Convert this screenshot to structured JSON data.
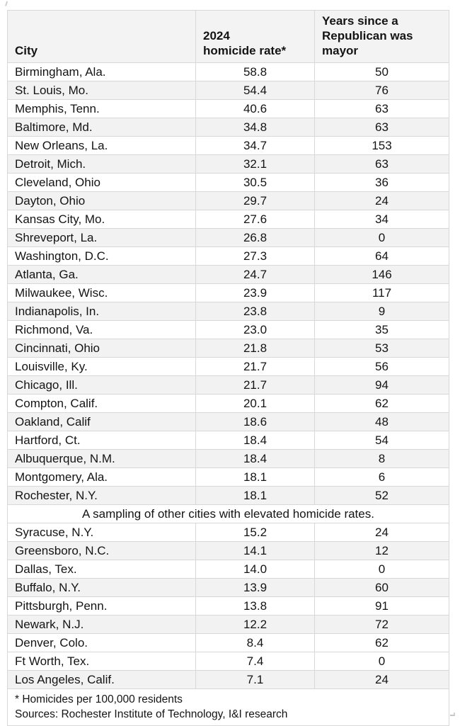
{
  "colors": {
    "row_shade": "#f2f2f2",
    "header_bg": "#f3f3f3",
    "border": "#d8d8d8",
    "text": "#141414"
  },
  "chart_data": {
    "type": "table",
    "columns": [
      "City",
      "2024\nhomicide rate*",
      "Years since a\nRepublican was\nmayor"
    ],
    "main_rows": [
      {
        "city": "Birmingham, Ala.",
        "rate": "58.8",
        "years": "50",
        "shaded": false
      },
      {
        "city": "St. Louis, Mo.",
        "rate": "54.4",
        "years": "76",
        "shaded": true
      },
      {
        "city": "Memphis, Tenn.",
        "rate": "40.6",
        "years": "63",
        "shaded": false
      },
      {
        "city": "Baltimore, Md.",
        "rate": "34.8",
        "years": "63",
        "shaded": true
      },
      {
        "city": "New Orleans, La.",
        "rate": "34.7",
        "years": "153",
        "shaded": false
      },
      {
        "city": "Detroit, Mich.",
        "rate": "32.1",
        "years": "63",
        "shaded": true
      },
      {
        "city": "Cleveland, Ohio",
        "rate": "30.5",
        "years": "36",
        "shaded": false
      },
      {
        "city": "Dayton, Ohio",
        "rate": "29.7",
        "years": "24",
        "shaded": true
      },
      {
        "city": "Kansas City, Mo.",
        "rate": "27.6",
        "years": "34",
        "shaded": false
      },
      {
        "city": "Shreveport, La.",
        "rate": "26.8",
        "years": "0",
        "shaded": true
      },
      {
        "city": "Washington, D.C.",
        "rate": "27.3",
        "years": "64",
        "shaded": false
      },
      {
        "city": "Atlanta, Ga.",
        "rate": "24.7",
        "years": "146",
        "shaded": true
      },
      {
        "city": "Milwaukee, Wisc.",
        "rate": "23.9",
        "years": "117",
        "shaded": false
      },
      {
        "city": "Indianapolis, In.",
        "rate": "23.8",
        "years": "9",
        "shaded": true
      },
      {
        "city": "Richmond, Va.",
        "rate": "23.0",
        "years": "35",
        "shaded": false
      },
      {
        "city": "Cincinnati, Ohio",
        "rate": "21.8",
        "years": "53",
        "shaded": true
      },
      {
        "city": "Louisville, Ky.",
        "rate": "21.7",
        "years": "56",
        "shaded": false
      },
      {
        "city": "Chicago, Ill.",
        "rate": "21.7",
        "years": "94",
        "shaded": true
      },
      {
        "city": "Compton, Calif.",
        "rate": "20.1",
        "years": "62",
        "shaded": false
      },
      {
        "city": "Oakland, Calif",
        "rate": "18.6",
        "years": "48",
        "shaded": true
      },
      {
        "city": "Hartford, Ct.",
        "rate": "18.4",
        "years": "54",
        "shaded": false
      },
      {
        "city": "Albuquerque, N.M.",
        "rate": "18.4",
        "years": "8",
        "shaded": true
      },
      {
        "city": "Montgomery, Ala.",
        "rate": "18.1",
        "years": "6",
        "shaded": false
      },
      {
        "city": "Rochester, N.Y.",
        "rate": "18.1",
        "years": "52",
        "shaded": true
      }
    ],
    "divider_text": "A sampling of other cities with elevated homicide rates.",
    "secondary_rows": [
      {
        "city": "Syracuse, N.Y.",
        "rate": "15.2",
        "years": "24",
        "shaded": false
      },
      {
        "city": "Greensboro, N.C.",
        "rate": "14.1",
        "years": "12",
        "shaded": true
      },
      {
        "city": "Dallas, Tex.",
        "rate": "14.0",
        "years": "0",
        "shaded": false
      },
      {
        "city": "Buffalo, N.Y.",
        "rate": "13.9",
        "years": "60",
        "shaded": true
      },
      {
        "city": "Pittsburgh, Penn.",
        "rate": "13.8",
        "years": "91",
        "shaded": false
      },
      {
        "city": "Newark, N.J.",
        "rate": "12.2",
        "years": "72",
        "shaded": true
      },
      {
        "city": "Denver, Colo.",
        "rate": "8.4",
        "years": "62",
        "shaded": false
      },
      {
        "city": "Ft Worth, Tex.",
        "rate": "7.4",
        "years": "0",
        "shaded": false
      },
      {
        "city": "Los Angeles, Calif.",
        "rate": "7.1",
        "years": "24",
        "shaded": true
      }
    ],
    "footnote": "* Homicides per 100,000 residents",
    "sources": "Sources: Rochester Institute of Technology, I&I research"
  }
}
